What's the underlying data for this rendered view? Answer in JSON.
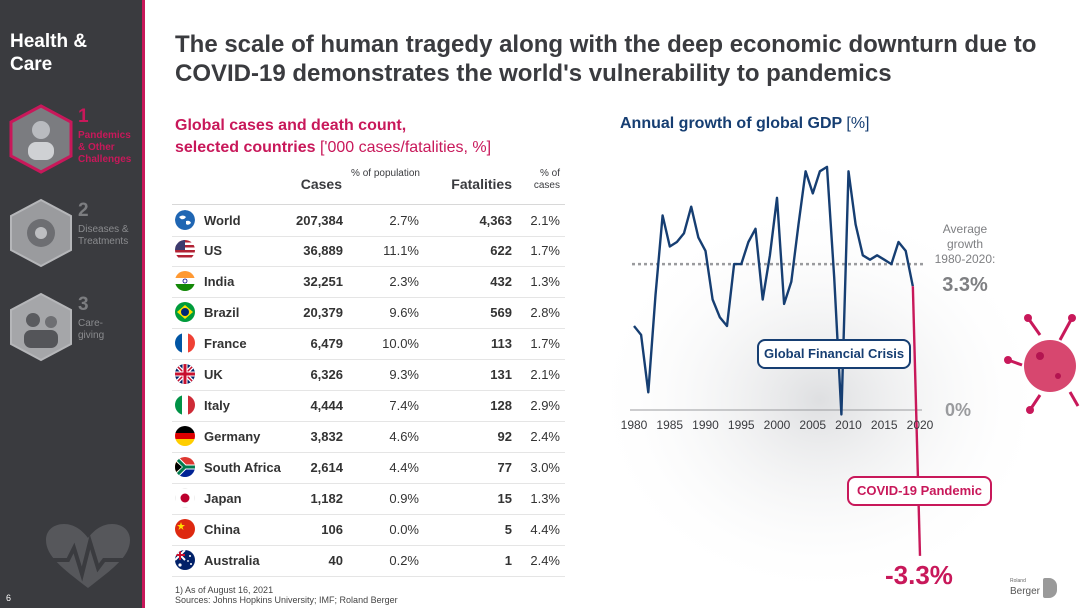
{
  "sidebar": {
    "brand": "Health & Care",
    "items": [
      {
        "num": "1",
        "label": "Pandemics\n& Other\nChallenges",
        "active": true
      },
      {
        "num": "2",
        "label": "Diseases &\nTreatments",
        "active": false
      },
      {
        "num": "3",
        "label": "Care-\ngiving",
        "active": false
      }
    ],
    "page_number": "6"
  },
  "header": {
    "title": "The scale of human tragedy along with the deep economic downturn due to COVID-19 demonstrates the world's vulnerability to pandemics"
  },
  "table": {
    "subtitle_line1": "Global cases and death count,",
    "subtitle_line2": "selected countries",
    "subtitle_unit": "['000 cases/fatalities, %]",
    "headers": {
      "cases": "Cases",
      "pct_population": "% of population",
      "fatalities": "Fatalities",
      "pct_cases": "% of cases"
    },
    "rows": [
      {
        "name": "World",
        "cases": "207,384",
        "pct_pop": "2.7%",
        "fatalities": "4,363",
        "pct_cases": "2.1%",
        "flag": "globe"
      },
      {
        "name": "US",
        "cases": "36,889",
        "pct_pop": "11.1%",
        "fatalities": "622",
        "pct_cases": "1.7%",
        "flag": "us"
      },
      {
        "name": "India",
        "cases": "32,251",
        "pct_pop": "2.3%",
        "fatalities": "432",
        "pct_cases": "1.3%",
        "flag": "india"
      },
      {
        "name": "Brazil",
        "cases": "20,379",
        "pct_pop": "9.6%",
        "fatalities": "569",
        "pct_cases": "2.8%",
        "flag": "brazil"
      },
      {
        "name": "France",
        "cases": "6,479",
        "pct_pop": "10.0%",
        "fatalities": "113",
        "pct_cases": "1.7%",
        "flag": "france"
      },
      {
        "name": "UK",
        "cases": "6,326",
        "pct_pop": "9.3%",
        "fatalities": "131",
        "pct_cases": "2.1%",
        "flag": "uk"
      },
      {
        "name": "Italy",
        "cases": "4,444",
        "pct_pop": "7.4%",
        "fatalities": "128",
        "pct_cases": "2.9%",
        "flag": "italy"
      },
      {
        "name": "Germany",
        "cases": "3,832",
        "pct_pop": "4.6%",
        "fatalities": "92",
        "pct_cases": "2.4%",
        "flag": "germany"
      },
      {
        "name": "South Africa",
        "cases": "2,614",
        "pct_pop": "4.4%",
        "fatalities": "77",
        "pct_cases": "3.0%",
        "flag": "southafrica"
      },
      {
        "name": "Japan",
        "cases": "1,182",
        "pct_pop": "0.9%",
        "fatalities": "15",
        "pct_cases": "1.3%",
        "flag": "japan"
      },
      {
        "name": "China",
        "cases": "106",
        "pct_pop": "0.0%",
        "fatalities": "5",
        "pct_cases": "4.4%",
        "flag": "china"
      },
      {
        "name": "Australia",
        "cases": "40",
        "pct_pop": "0.2%",
        "fatalities": "1",
        "pct_cases": "2.4%",
        "flag": "australia"
      }
    ],
    "footnote1": "1) As of August 16, 2021",
    "footnote2": "Sources: Johns Hopkins University; IMF; Roland Berger"
  },
  "chart_data": {
    "type": "line",
    "title": "Annual growth of global GDP",
    "unit": "[%]",
    "x": [
      1980,
      1981,
      1982,
      1983,
      1984,
      1985,
      1986,
      1987,
      1988,
      1989,
      1990,
      1991,
      1992,
      1993,
      1994,
      1995,
      1996,
      1997,
      1998,
      1999,
      2000,
      2001,
      2002,
      2003,
      2004,
      2005,
      2006,
      2007,
      2008,
      2009,
      2010,
      2011,
      2012,
      2013,
      2014,
      2015,
      2016,
      2017,
      2018,
      2019
    ],
    "y": [
      1.9,
      1.7,
      0.4,
      2.6,
      4.4,
      3.7,
      3.8,
      4.0,
      4.6,
      3.9,
      3.6,
      2.5,
      2.1,
      1.9,
      3.3,
      3.3,
      3.8,
      4.1,
      2.5,
      3.5,
      4.8,
      2.4,
      2.9,
      4.2,
      5.4,
      4.9,
      5.4,
      5.5,
      3.0,
      -0.1,
      5.4,
      4.2,
      3.5,
      3.4,
      3.5,
      3.4,
      3.3,
      3.8,
      3.6,
      2.8
    ],
    "covid": {
      "x": 2020,
      "y": -3.3
    },
    "x_ticks": [
      "1980",
      "1985",
      "1990",
      "1995",
      "2000",
      "2005",
      "2010",
      "2015",
      "2020"
    ],
    "ylim": [
      -3.5,
      6.0
    ],
    "average": {
      "label": "Average growth 1980-2020:",
      "value": "3.3%",
      "y": 3.3
    },
    "zero_label": "0%",
    "annotations": {
      "gfc": "Global Financial Crisis",
      "covid": "COVID-19 Pandemic",
      "covid_value": "-3.3%"
    }
  },
  "logo": {
    "small": "Roland",
    "text": "Berger"
  },
  "colors": {
    "accent": "#c8185a",
    "navy": "#163e72",
    "sidebar": "#3a3b3f"
  }
}
